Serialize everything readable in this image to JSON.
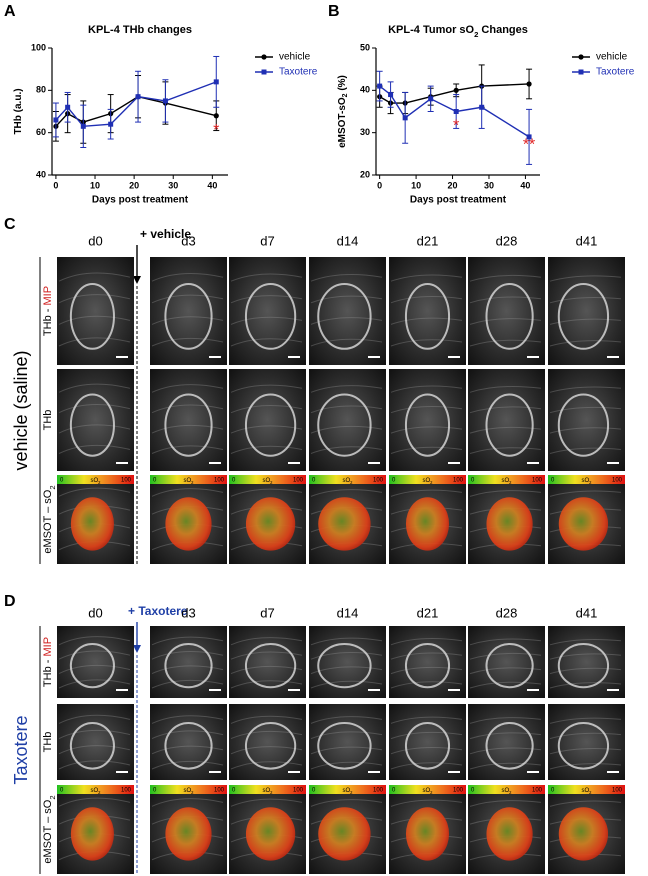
{
  "chart_data": [
    {
      "type": "line",
      "panel": "A",
      "title": "KPL-4 THb changes",
      "xlabel": "Days post treatment",
      "ylabel": "THb (a.u.)",
      "x": [
        0,
        3,
        7,
        14,
        21,
        28,
        41
      ],
      "series": [
        {
          "name": "vehicle",
          "color": "#000000",
          "marker": "circle",
          "values": [
            63,
            69,
            65,
            69,
            77,
            74,
            68
          ],
          "errors": [
            7,
            9,
            10,
            9,
            10,
            10,
            7
          ]
        },
        {
          "name": "Taxotere",
          "color": "#1f2fb4",
          "marker": "square",
          "values": [
            66,
            72,
            63,
            64,
            77,
            75,
            84
          ],
          "errors": [
            8,
            7,
            10,
            7,
            12,
            10,
            12
          ]
        }
      ],
      "xlim": [
        -1,
        44
      ],
      "xticks": [
        0,
        10,
        20,
        30,
        40
      ],
      "ylim": [
        40,
        100
      ],
      "yticks": [
        40,
        60,
        80,
        100
      ],
      "annotations": [
        {
          "text": "*",
          "x": 41,
          "y": 61,
          "color": "#e02020"
        }
      ]
    },
    {
      "type": "line",
      "panel": "B",
      "title": "KPL-4 Tumor sO",
      "title_sub": "2",
      "title_end": " Changes",
      "xlabel": "Days post treatment",
      "ylabel": "eMSOT-sO",
      "ylabel_sub": "2",
      "ylabel_end": " (%)",
      "x": [
        0,
        3,
        7,
        14,
        21,
        28,
        41
      ],
      "series": [
        {
          "name": "vehicle",
          "color": "#000000",
          "marker": "circle",
          "values": [
            38.5,
            37,
            37,
            38.5,
            40,
            41,
            41.5
          ],
          "errors": [
            2.5,
            2.5,
            2.5,
            2,
            1.5,
            5,
            3.5
          ]
        },
        {
          "name": "Taxotere",
          "color": "#1f2fb4",
          "marker": "square",
          "values": [
            41,
            39,
            33.5,
            38,
            35,
            36,
            29
          ],
          "errors": [
            3.5,
            3,
            6,
            3,
            4,
            5,
            6.5
          ]
        }
      ],
      "xlim": [
        -1,
        44
      ],
      "xticks": [
        0,
        10,
        20,
        30,
        40
      ],
      "ylim": [
        20,
        50
      ],
      "yticks": [
        20,
        30,
        40,
        50
      ],
      "annotations": [
        {
          "text": "*",
          "x": 21,
          "y": 31.5,
          "color": "#e02020"
        },
        {
          "text": "**",
          "x": 41,
          "y": 27,
          "color": "#e02020"
        }
      ]
    }
  ],
  "image_panels": [
    {
      "letter": "C",
      "treatment": "+ vehicle",
      "group": "vehicle (saline)",
      "color": "#000000",
      "columns": [
        "d0",
        "d3",
        "d7",
        "d14",
        "d21",
        "d28",
        "d41"
      ],
      "rows": [
        {
          "label": "THb - ",
          "highlight": "MIP"
        },
        {
          "label": "THb"
        },
        {
          "label": "eMSOT – sO",
          "sub": "2"
        }
      ],
      "colorbar": {
        "min": "0",
        "label": "sO",
        "sub": "2",
        "max": "100"
      }
    },
    {
      "letter": "D",
      "treatment": "+ Taxotere",
      "group": "Taxotere",
      "color": "#1f3fa6",
      "columns": [
        "d0",
        "d3",
        "d7",
        "d14",
        "d21",
        "d28",
        "d41"
      ],
      "rows": [
        {
          "label": "THb - ",
          "highlight": "MIP"
        },
        {
          "label": "THb"
        },
        {
          "label": "eMSOT – sO",
          "sub": "2"
        }
      ],
      "colorbar": {
        "min": "0",
        "label": "sO",
        "sub": "2",
        "max": "100"
      }
    }
  ]
}
